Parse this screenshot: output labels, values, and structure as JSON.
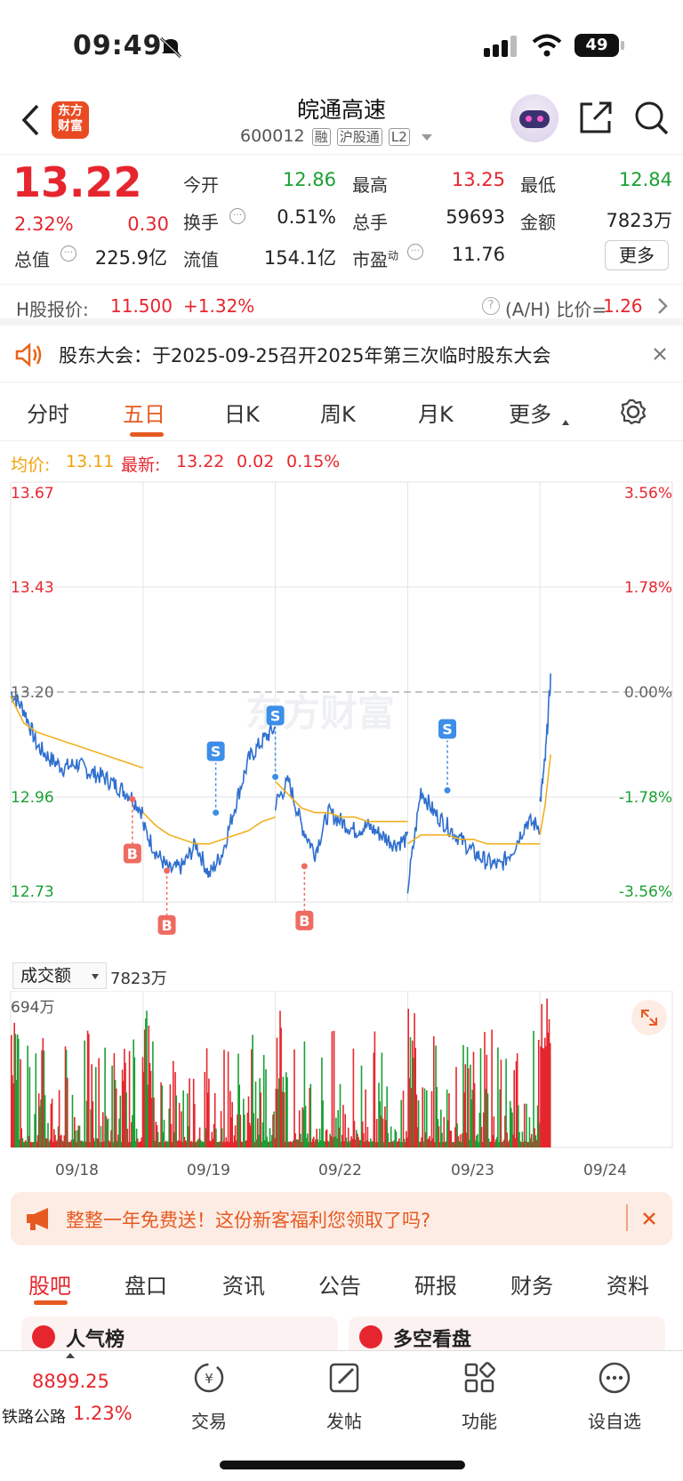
{
  "status": {
    "time": "09:49",
    "battery": "49"
  },
  "nav": {
    "title": "皖通高速",
    "code": "600012",
    "badges": [
      "融",
      "沪股通",
      "L2"
    ],
    "logo_text": "东方\n财富"
  },
  "quote": {
    "price": "13.22",
    "change_pct": "2.32%",
    "change": "0.30",
    "open_label": "今开",
    "open": "12.86",
    "high_label": "最高",
    "high": "13.25",
    "low_label": "最低",
    "low": "12.84",
    "turnover_label": "换手",
    "turnover": "0.51%",
    "volume_label": "总手",
    "volume": "59693",
    "amount_label": "金额",
    "amount": "7823万",
    "mktcap_label": "总值",
    "mktcap": "225.9亿",
    "float_label": "流值",
    "float_cap": "154.1亿",
    "pe_label": "市盈",
    "pe_sup": "动",
    "pe": "11.76",
    "more_label": "更多"
  },
  "hshare": {
    "label": "H股报价:",
    "price": "11.500",
    "change": "+1.32%",
    "ah_label": "(A/H) 比价=",
    "ah_value": "1.26"
  },
  "notice": {
    "text": "股东大会：于2025-09-25召开2025年第三次临时股东大会"
  },
  "tabs": [
    "分时",
    "五日",
    "日K",
    "周K",
    "月K",
    "更多"
  ],
  "active_tab": "五日",
  "chart_info": {
    "avg_label": "均价:",
    "avg": "13.11",
    "latest_label": "最新:",
    "latest": "13.22",
    "chg": "0.02",
    "pct": "0.15%"
  },
  "chart_data": {
    "type": "line",
    "y_left_ticks": [
      "13.67",
      "13.43",
      "13.20",
      "12.96",
      "12.73"
    ],
    "y_right_ticks": [
      "3.56%",
      "1.78%",
      "0.00%",
      "-1.78%",
      "-3.56%"
    ],
    "ylim": [
      12.73,
      13.67
    ],
    "prev_close": 13.2,
    "x_labels": [
      "09/18",
      "09/19",
      "09/22",
      "09/23",
      "09/24"
    ],
    "series": [
      {
        "price_days": [
          [
            13.2,
            13.16,
            13.08,
            13.05,
            13.03,
            13.04,
            13.02,
            13.01,
            12.99,
            12.97,
            12.93
          ],
          [
            12.9,
            12.84,
            12.8,
            12.81,
            12.86,
            12.79,
            12.84,
            12.95,
            13.05,
            13.09,
            13.12
          ],
          [
            12.95,
            13.0,
            12.9,
            12.84,
            12.93,
            12.91,
            12.89,
            12.9,
            12.88,
            12.86,
            12.87
          ],
          [
            12.76,
            12.98,
            12.93,
            12.9,
            12.87,
            12.84,
            12.82,
            12.81,
            12.85,
            12.91,
            12.9
          ],
          [
            12.95,
            13.05,
            13.23
          ]
        ]
      },
      {
        "avg_days": [
          [
            13.19,
            13.13,
            13.11,
            13.1,
            13.09,
            13.08,
            13.07,
            13.06,
            13.05,
            13.04,
            13.03
          ],
          [
            12.93,
            12.9,
            12.88,
            12.87,
            12.86,
            12.86,
            12.87,
            12.88,
            12.89,
            12.91,
            12.92
          ],
          [
            13.0,
            12.97,
            12.94,
            12.93,
            12.93,
            12.92,
            12.92,
            12.91,
            12.91,
            12.91,
            12.91
          ],
          [
            12.86,
            12.88,
            12.88,
            12.88,
            12.87,
            12.87,
            12.86,
            12.86,
            12.86,
            12.86,
            12.86
          ],
          [
            12.88,
            12.95,
            13.06
          ]
        ]
      }
    ],
    "markers": [
      {
        "label": "B",
        "day": 0,
        "t": 0.92,
        "price": 12.96
      },
      {
        "label": "B",
        "day": 1,
        "t": 0.18,
        "price": 12.8
      },
      {
        "label": "S",
        "day": 1,
        "t": 0.55,
        "price": 12.93
      },
      {
        "label": "S",
        "day": 1,
        "t": 1.0,
        "price": 13.01
      },
      {
        "label": "B",
        "day": 2,
        "t": 0.22,
        "price": 12.81
      },
      {
        "label": "S",
        "day": 3,
        "t": 0.3,
        "price": 12.98
      }
    ]
  },
  "volume": {
    "selector": "成交额",
    "value": "7823万",
    "max_label": "694万"
  },
  "banner": {
    "text": "整整一年免费送！这份新客福利您领取了吗?"
  },
  "bottom_tabs": [
    "股吧",
    "盘口",
    "资讯",
    "公告",
    "研报",
    "财务",
    "资料"
  ],
  "active_bottom_tab": "股吧",
  "peek": {
    "left": "人气榜",
    "right": "多空看盘"
  },
  "toolbar": {
    "index_value": "8899.25",
    "index_name": "铁路公路",
    "index_pct": "1.23%",
    "items": [
      "交易",
      "发帖",
      "功能",
      "设自选"
    ]
  },
  "watermark": "东方财富"
}
